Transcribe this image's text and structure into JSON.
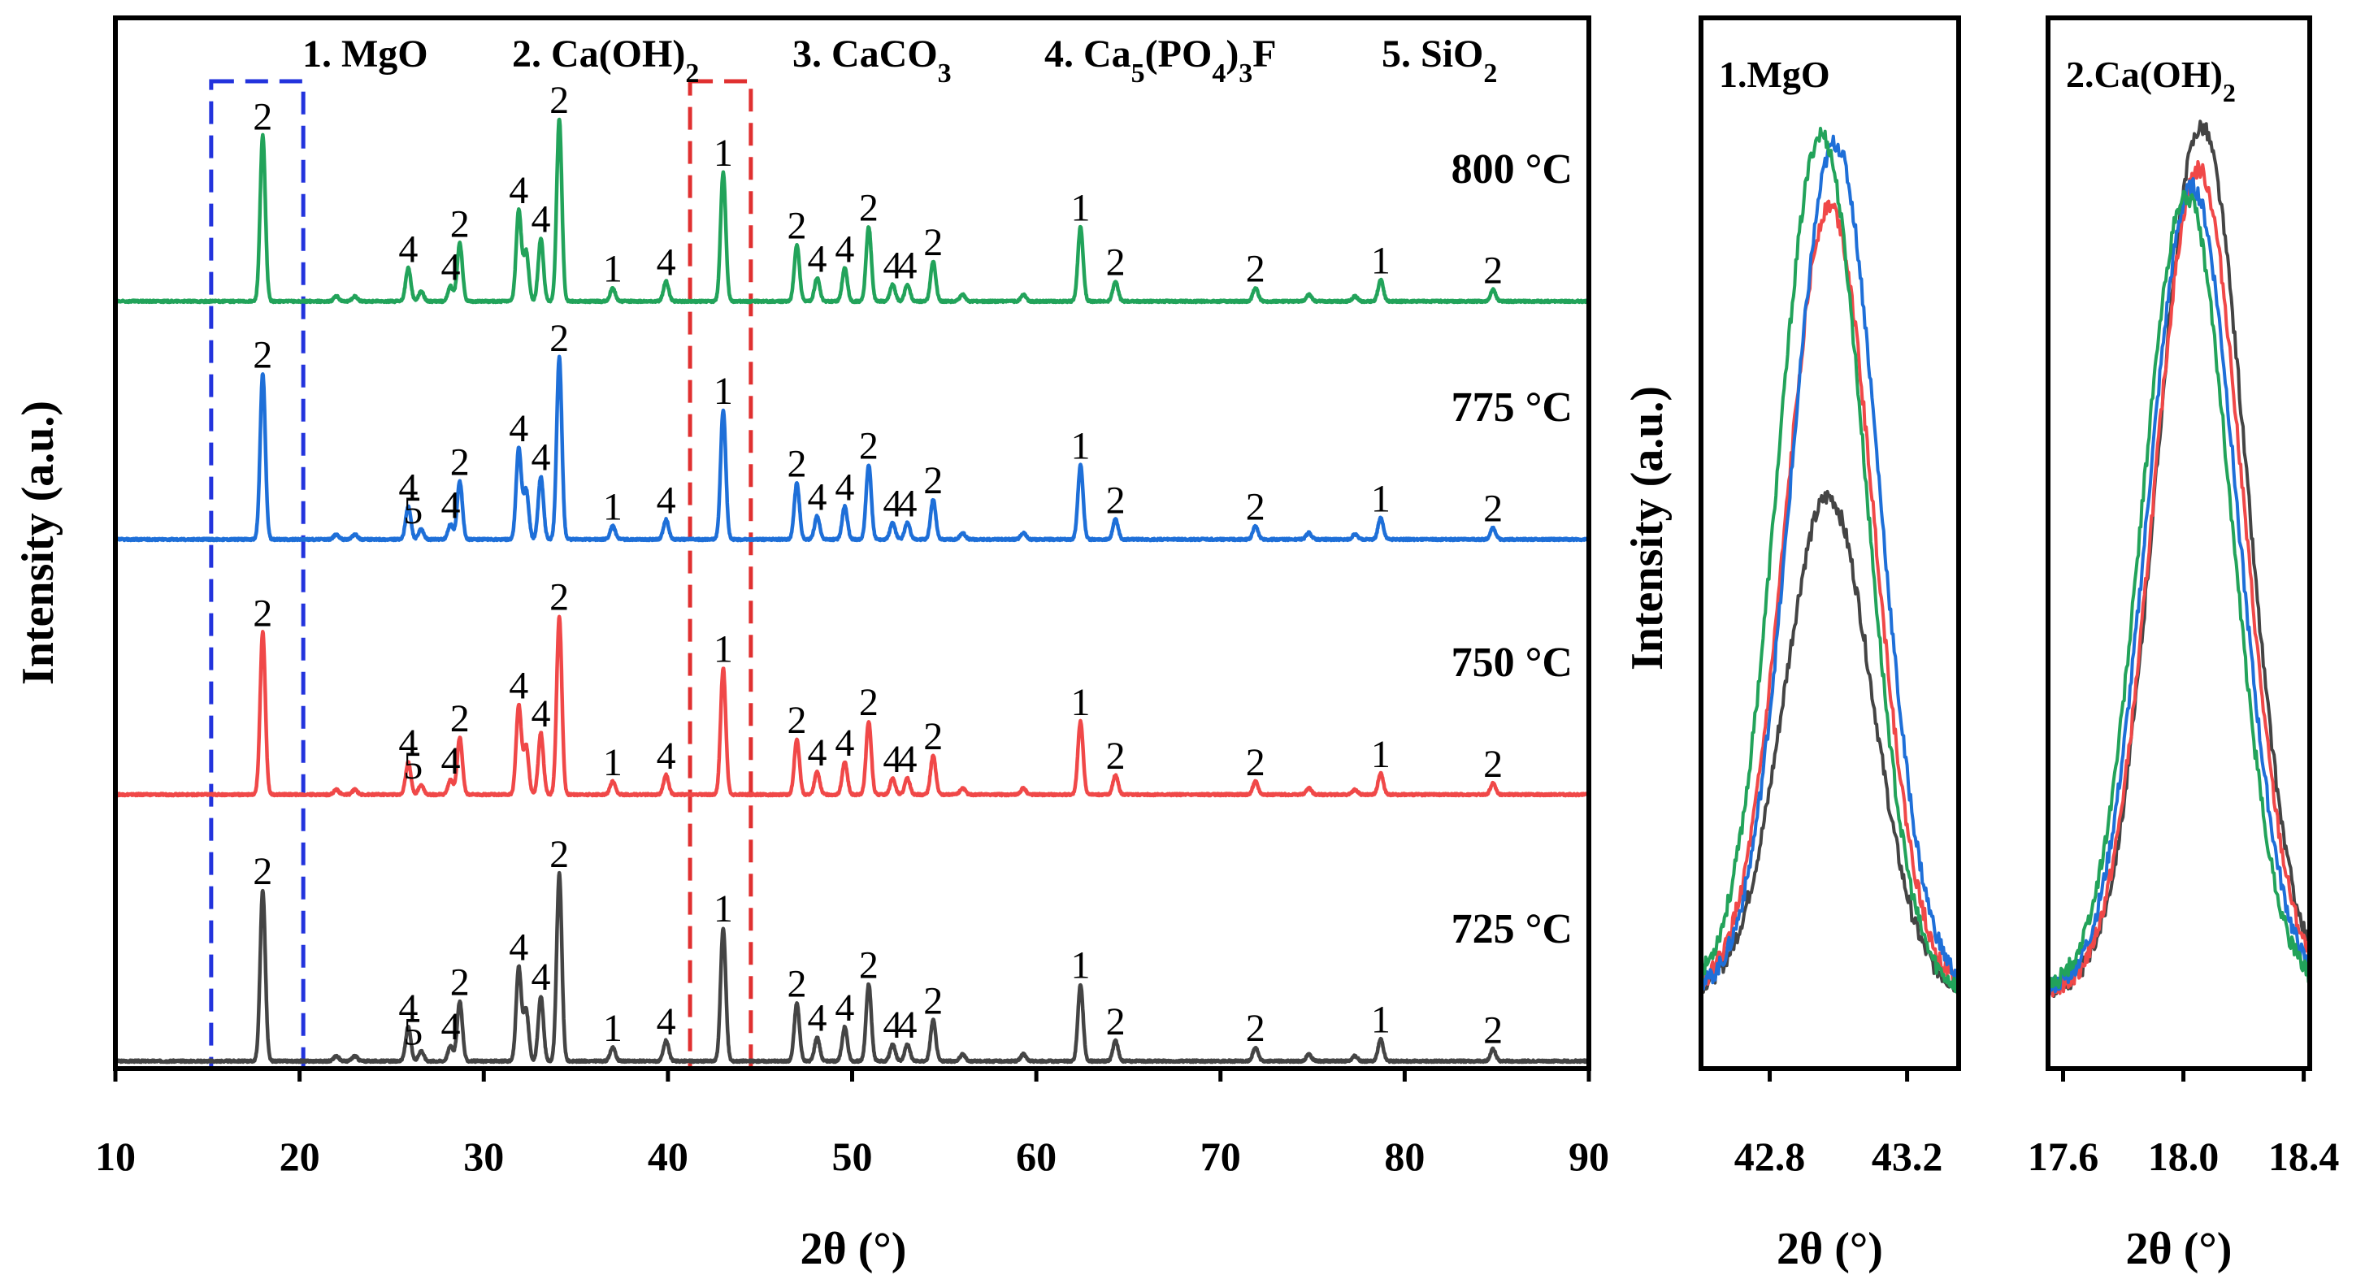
{
  "chart_data": [
    {
      "type": "line",
      "title": "",
      "xlabel": "2θ (°)",
      "ylabel": "Intensity (a.u.)",
      "xlim": [
        10,
        90
      ],
      "xticks": [
        "10",
        "20",
        "30",
        "40",
        "50",
        "60",
        "70",
        "80",
        "90"
      ],
      "xtick_values": [
        10,
        20,
        30,
        40,
        50,
        60,
        70,
        80,
        90
      ],
      "legend_phases": [
        {
          "num": "1.",
          "name": "MgO"
        },
        {
          "num": "2.",
          "name": "Ca(OH)2"
        },
        {
          "num": "3.",
          "name": "CaCO3"
        },
        {
          "num": "4.",
          "name": "Ca5(PO4)3F"
        },
        {
          "num": "5.",
          "name": "SiO2"
        }
      ],
      "highlight_regions": [
        {
          "color": "#2233dd",
          "x_range": [
            15.2,
            20.2
          ]
        },
        {
          "color": "#e03030",
          "x_range": [
            41.2,
            44.5
          ]
        }
      ],
      "peaks": [
        {
          "x": 18.0,
          "rel": 1.0,
          "label": "2"
        },
        {
          "x": 22.0,
          "rel": 0.03,
          "label": ""
        },
        {
          "x": 23.0,
          "rel": 0.03,
          "label": ""
        },
        {
          "x": 25.9,
          "rel": 0.2,
          "label": "4"
        },
        {
          "x": 26.6,
          "rel": 0.06,
          "label": "5"
        },
        {
          "x": 28.2,
          "rel": 0.09,
          "label": "4"
        },
        {
          "x": 28.7,
          "rel": 0.35,
          "label": "2"
        },
        {
          "x": 31.9,
          "rel": 0.55,
          "label": "4"
        },
        {
          "x": 32.3,
          "rel": 0.3,
          "label": ""
        },
        {
          "x": 33.1,
          "rel": 0.38,
          "label": "4"
        },
        {
          "x": 34.1,
          "rel": 1.1,
          "label": "2"
        },
        {
          "x": 37.0,
          "rel": 0.08,
          "label": "1"
        },
        {
          "x": 39.9,
          "rel": 0.12,
          "label": "4"
        },
        {
          "x": 43.0,
          "rel": 0.78,
          "label": "1"
        },
        {
          "x": 47.0,
          "rel": 0.34,
          "label": "2"
        },
        {
          "x": 48.1,
          "rel": 0.14,
          "label": "4"
        },
        {
          "x": 49.6,
          "rel": 0.2,
          "label": "4"
        },
        {
          "x": 50.9,
          "rel": 0.45,
          "label": "2"
        },
        {
          "x": 52.2,
          "rel": 0.1,
          "label": "4"
        },
        {
          "x": 53.0,
          "rel": 0.1,
          "label": "4"
        },
        {
          "x": 54.4,
          "rel": 0.24,
          "label": "2"
        },
        {
          "x": 56.0,
          "rel": 0.04,
          "label": ""
        },
        {
          "x": 59.3,
          "rel": 0.04,
          "label": ""
        },
        {
          "x": 62.4,
          "rel": 0.45,
          "label": "1"
        },
        {
          "x": 64.3,
          "rel": 0.12,
          "label": "2"
        },
        {
          "x": 71.9,
          "rel": 0.08,
          "label": "2"
        },
        {
          "x": 74.8,
          "rel": 0.04,
          "label": ""
        },
        {
          "x": 77.3,
          "rel": 0.03,
          "label": ""
        },
        {
          "x": 78.7,
          "rel": 0.13,
          "label": "1"
        },
        {
          "x": 84.8,
          "rel": 0.07,
          "label": "2"
        }
      ],
      "series": [
        {
          "name": "725 °C",
          "color": "#444444",
          "offset": 0.0,
          "scale": 1.0,
          "labels_5": true
        },
        {
          "name": "750 °C",
          "color": "#f04848",
          "offset": 1.0,
          "scale": 0.95,
          "labels_5": true
        },
        {
          "name": "775 °C",
          "color": "#1e6fd8",
          "offset": 2.0,
          "scale": 0.97,
          "labels_5": true
        },
        {
          "name": "800 °C",
          "color": "#22a35a",
          "offset": 3.0,
          "scale": 0.97,
          "labels_5": false
        }
      ]
    },
    {
      "type": "line",
      "title": "1.MgO",
      "xlabel": "2θ (°)",
      "ylabel": "Intensity (a.u.)",
      "xlim": [
        42.6,
        43.35
      ],
      "xticks": [
        "42.8",
        "43.2"
      ],
      "xtick_values": [
        42.8,
        43.2
      ],
      "peak_center": 42.97,
      "series": [
        {
          "name": "725 °C",
          "color": "#444444",
          "height": 0.56,
          "shift": 0.0
        },
        {
          "name": "750 °C",
          "color": "#f04848",
          "height": 0.89,
          "shift": 0.005
        },
        {
          "name": "775 °C",
          "color": "#1e6fd8",
          "height": 0.96,
          "shift": 0.02
        },
        {
          "name": "800 °C",
          "color": "#22a35a",
          "height": 0.97,
          "shift": -0.02
        }
      ]
    },
    {
      "type": "line",
      "title": "2.Ca(OH)2",
      "xlabel": "2θ (°)",
      "xlim": [
        17.55,
        18.42
      ],
      "xticks": [
        "17.6",
        "18.0",
        "18.4"
      ],
      "xtick_values": [
        17.6,
        18.0,
        18.4
      ],
      "peak_center": 18.02,
      "series": [
        {
          "name": "725 °C",
          "color": "#444444",
          "height": 0.98,
          "shift": 0.04
        },
        {
          "name": "750 °C",
          "color": "#f04848",
          "height": 0.93,
          "shift": 0.03
        },
        {
          "name": "775 °C",
          "color": "#1e6fd8",
          "height": 0.91,
          "shift": 0.01
        },
        {
          "name": "800 °C",
          "color": "#22a35a",
          "height": 0.9,
          "shift": -0.01
        }
      ]
    }
  ]
}
